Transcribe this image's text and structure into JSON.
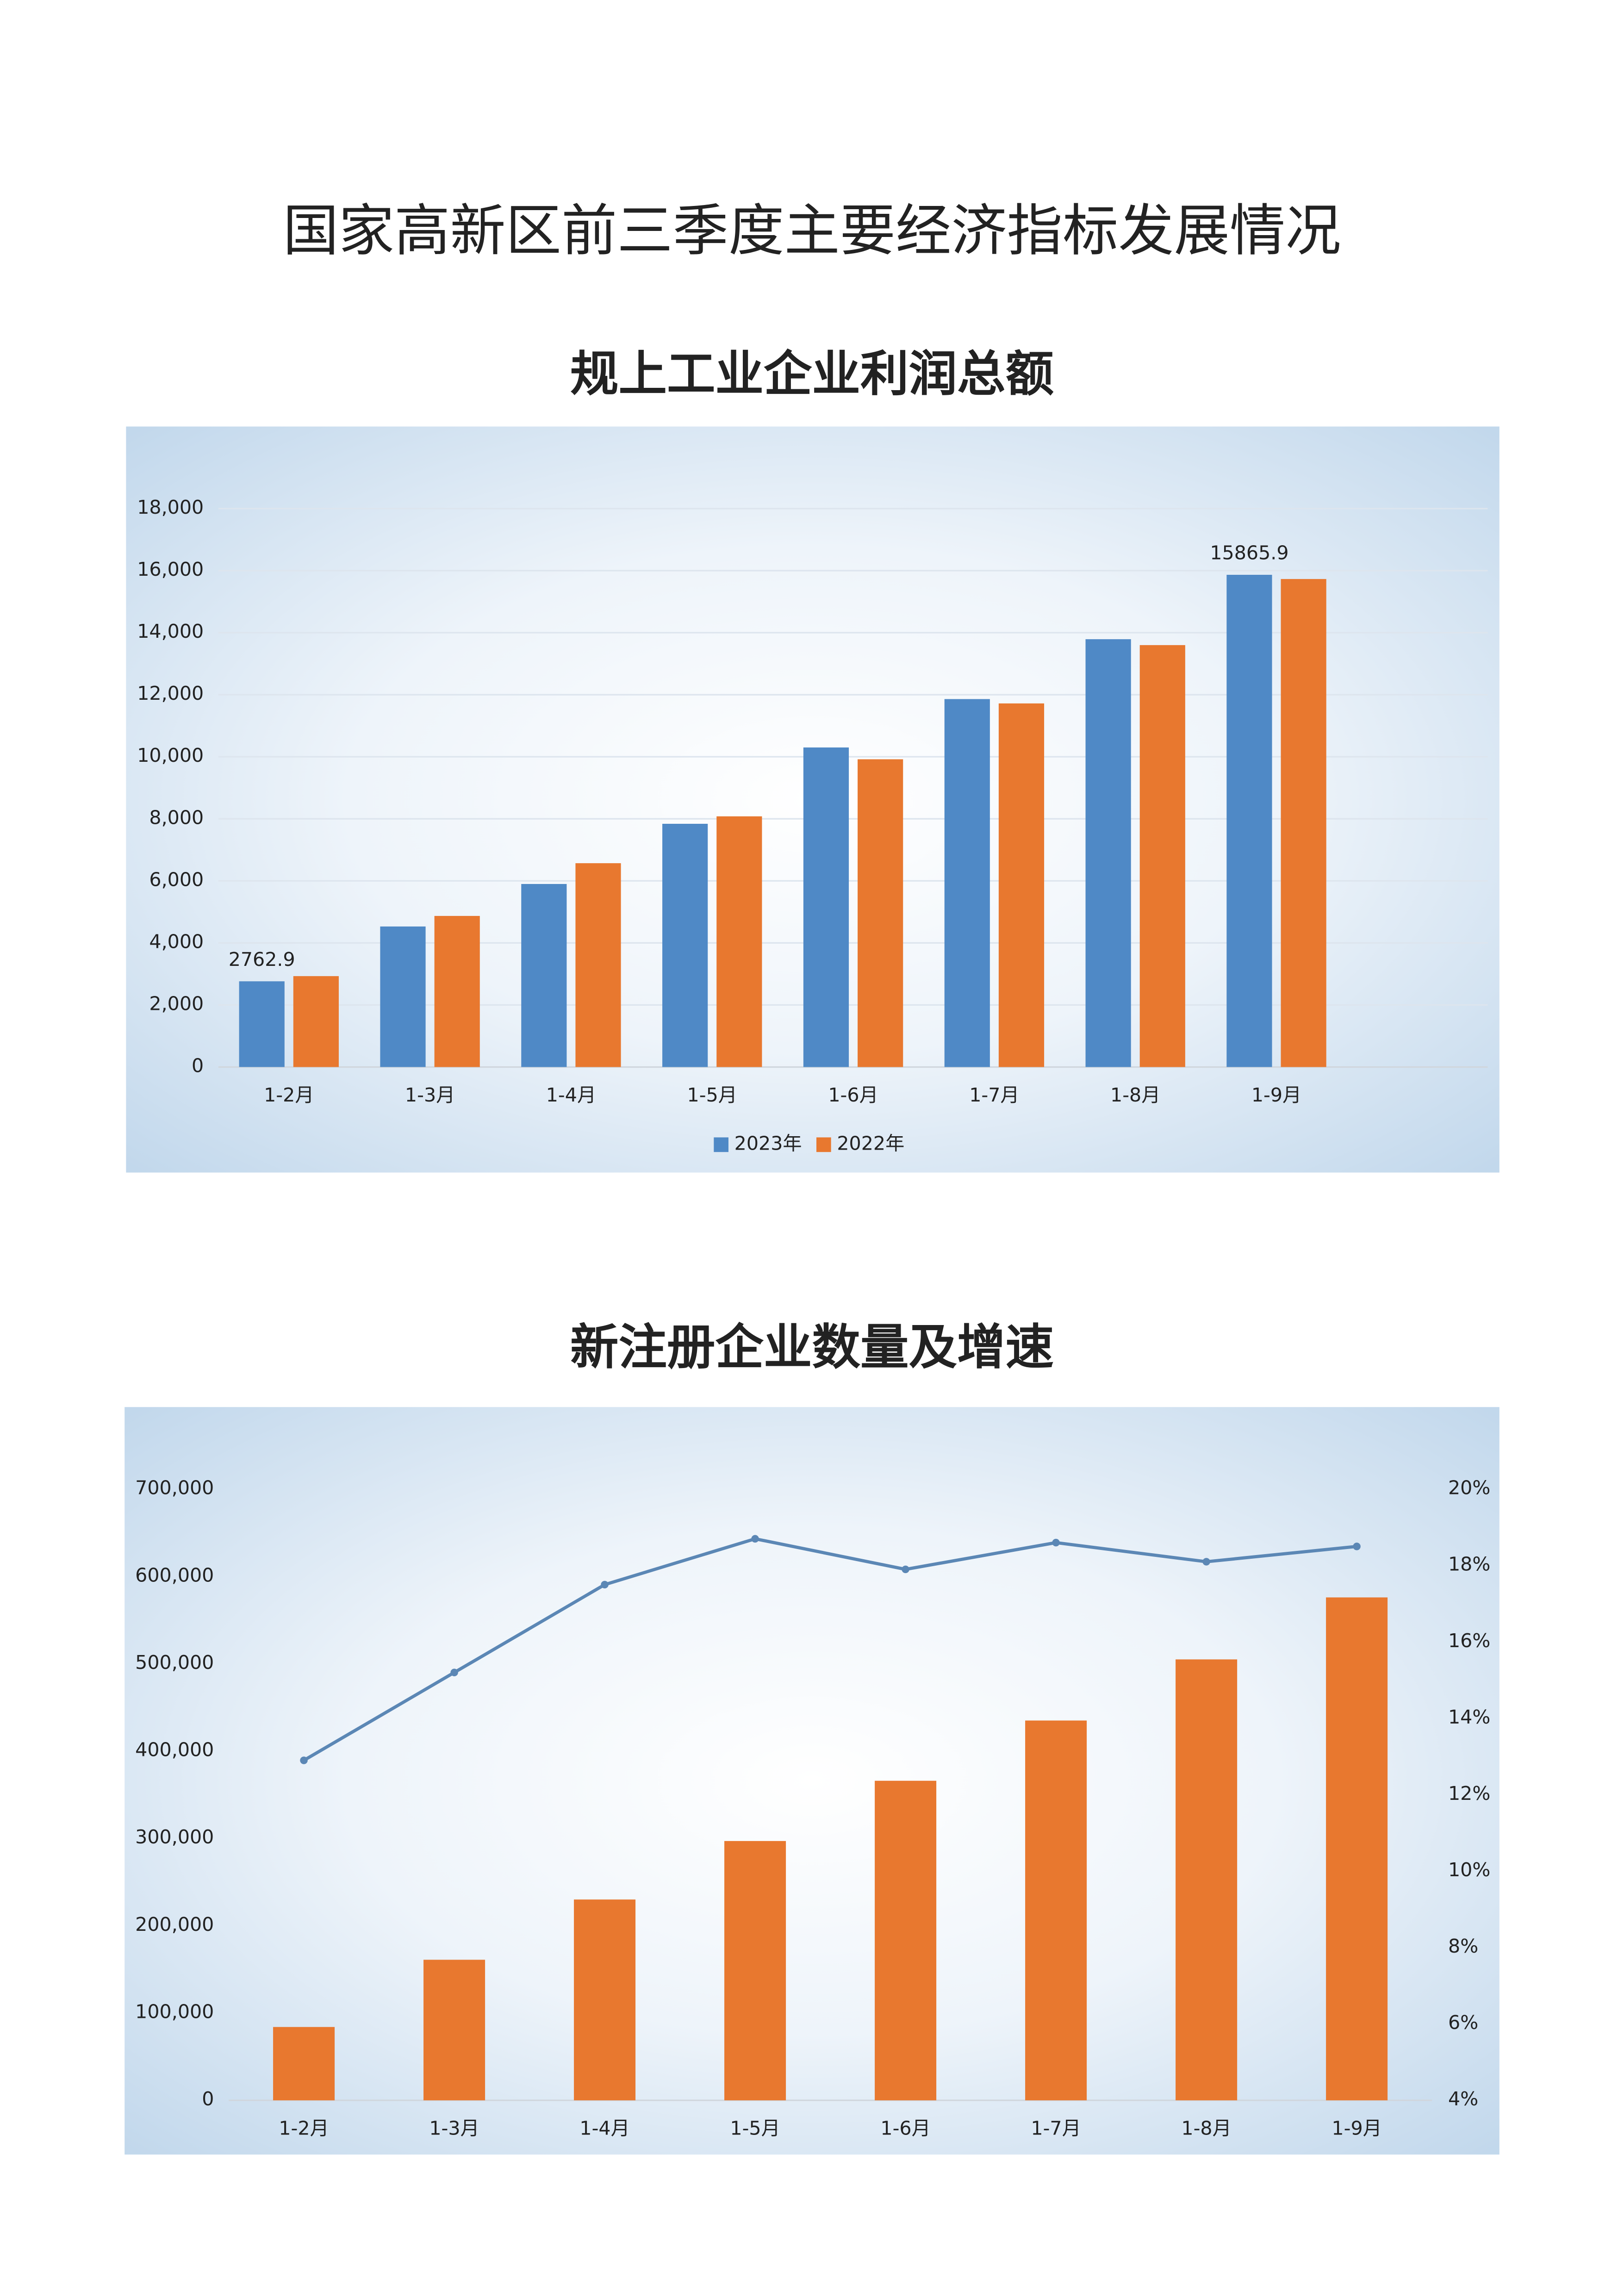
{
  "page_title": "国家高新区前三季度主要经济指标发展情况",
  "chart_data": [
    {
      "type": "bar",
      "title": "规上工业企业利润总额",
      "categories": [
        "1-2月",
        "1-3月",
        "1-4月",
        "1-5月",
        "1-6月",
        "1-7月",
        "1-8月",
        "1-9月"
      ],
      "series": [
        {
          "name": "2023年",
          "color": "#4f89c6",
          "values": [
            2762.9,
            4530,
            5900,
            7840,
            10300,
            11860,
            13790,
            15865.9
          ],
          "value_labels": [
            "2762.9",
            null,
            null,
            null,
            null,
            null,
            null,
            "15865.9"
          ]
        },
        {
          "name": "2022年",
          "color": "#e8782f",
          "values": [
            2930,
            4870,
            6570,
            8080,
            9920,
            11720,
            13600,
            15730
          ]
        }
      ],
      "ylim": [
        0,
        18000
      ],
      "yticks": [
        0,
        {
          "value": 2000,
          "label": "2,000"
        },
        {
          "value": 4000,
          "label": "4,000"
        },
        {
          "value": 6000,
          "label": "6,000"
        },
        {
          "value": 8000,
          "label": "8,000"
        },
        {
          "value": 10000,
          "label": "10,000"
        },
        {
          "value": 12000,
          "label": "12,000"
        },
        {
          "value": 14000,
          "label": "14,000"
        },
        {
          "value": 16000,
          "label": "16,000"
        },
        {
          "value": 18000,
          "label": "18,000"
        }
      ],
      "grid": true,
      "legend": "bottom"
    },
    {
      "type": "bar",
      "title": "新注册企业数量及增速",
      "categories": [
        "1-2月",
        "1-3月",
        "1-4月",
        "1-5月",
        "1-6月",
        "1-7月",
        "1-8月",
        "1-9月"
      ],
      "series": [
        {
          "color": "#e8782f",
          "values": [
            84000,
            161000,
            230000,
            297000,
            366000,
            435000,
            505000,
            576000
          ]
        },
        {
          "type": "line",
          "axis": "y2",
          "color": "#5b87b5",
          "values": [
            12.9,
            15.2,
            17.5,
            18.7,
            17.9,
            18.6,
            18.1,
            18.5
          ]
        }
      ],
      "ylim": [
        0,
        700000
      ],
      "yticks": [
        0,
        {
          "value": 100000,
          "label": "100,000"
        },
        {
          "value": 200000,
          "label": "200,000"
        },
        {
          "value": 300000,
          "label": "300,000"
        },
        {
          "value": 400000,
          "label": "400,000"
        },
        {
          "value": 500000,
          "label": "500,000"
        },
        {
          "value": 600000,
          "label": "600,000"
        },
        {
          "value": 700000,
          "label": "700,000"
        }
      ],
      "y2lim": [
        4,
        20
      ],
      "y2ticks": [
        {
          "value": 4,
          "label": "4%"
        },
        {
          "value": 6,
          "label": "6%"
        },
        {
          "value": 8,
          "label": "8%"
        },
        {
          "value": 10,
          "label": "10%"
        },
        {
          "value": 12,
          "label": "12%"
        },
        {
          "value": 14,
          "label": "14%"
        },
        {
          "value": 16,
          "label": "16%"
        },
        {
          "value": 18,
          "label": "18%"
        },
        {
          "value": 20,
          "label": "20%"
        }
      ],
      "grid": false
    }
  ]
}
